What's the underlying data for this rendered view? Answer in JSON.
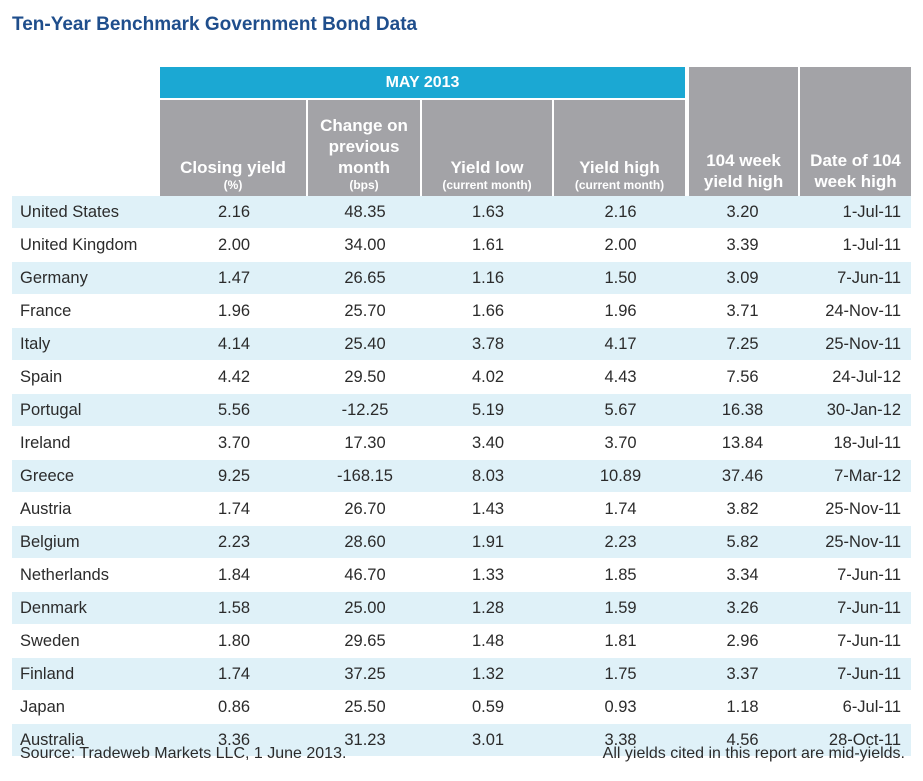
{
  "title": "Ten-Year Benchmark Government Bond Data",
  "header": {
    "month": "MAY 2013",
    "closing_yield": "Closing yield",
    "closing_yield_unit": "(%)",
    "change_line1": "Change on",
    "change_line2": "previous",
    "change_line3": "month",
    "change_unit": "(bps)",
    "yield_low": "Yield low",
    "yield_low_sub": "(current month)",
    "yield_high": "Yield high",
    "yield_high_sub": "(current month)",
    "week_high_line1": "104 week",
    "week_high_line2": "yield high",
    "date_high_line1": "Date of 104",
    "date_high_line2": "week high"
  },
  "rows": [
    [
      "United States",
      "2.16",
      "48.35",
      "1.63",
      "2.16",
      "3.20",
      "1-Jul-11"
    ],
    [
      "United Kingdom",
      "2.00",
      "34.00",
      "1.61",
      "2.00",
      "3.39",
      "1-Jul-11"
    ],
    [
      "Germany",
      "1.47",
      "26.65",
      "1.16",
      "1.50",
      "3.09",
      "7-Jun-11"
    ],
    [
      "France",
      "1.96",
      "25.70",
      "1.66",
      "1.96",
      "3.71",
      "24-Nov-11"
    ],
    [
      "Italy",
      "4.14",
      "25.40",
      "3.78",
      "4.17",
      "7.25",
      "25-Nov-11"
    ],
    [
      "Spain",
      "4.42",
      "29.50",
      "4.02",
      "4.43",
      "7.56",
      "24-Jul-12"
    ],
    [
      "Portugal",
      "5.56",
      "-12.25",
      "5.19",
      "5.67",
      "16.38",
      "30-Jan-12"
    ],
    [
      "Ireland",
      "3.70",
      "17.30",
      "3.40",
      "3.70",
      "13.84",
      "18-Jul-11"
    ],
    [
      "Greece",
      "9.25",
      "-168.15",
      "8.03",
      "10.89",
      "37.46",
      "7-Mar-12"
    ],
    [
      "Austria",
      "1.74",
      "26.70",
      "1.43",
      "1.74",
      "3.82",
      "25-Nov-11"
    ],
    [
      "Belgium",
      "2.23",
      "28.60",
      "1.91",
      "2.23",
      "5.82",
      "25-Nov-11"
    ],
    [
      "Netherlands",
      "1.84",
      "46.70",
      "1.33",
      "1.85",
      "3.34",
      "7-Jun-11"
    ],
    [
      "Denmark",
      "1.58",
      "25.00",
      "1.28",
      "1.59",
      "3.26",
      "7-Jun-11"
    ],
    [
      "Sweden",
      "1.80",
      "29.65",
      "1.48",
      "1.81",
      "2.96",
      "7-Jun-11"
    ],
    [
      "Finland",
      "1.74",
      "37.25",
      "1.32",
      "1.75",
      "3.37",
      "7-Jun-11"
    ],
    [
      "Japan",
      "0.86",
      "25.50",
      "0.59",
      "0.93",
      "1.18",
      "6-Jul-11"
    ],
    [
      "Australia",
      "3.36",
      "31.23",
      "3.01",
      "3.38",
      "4.56",
      "28-Oct-11"
    ]
  ],
  "footer": {
    "source": "Source: Tradeweb Markets LLC, 1 June 2013.",
    "note": "All yields cited in this report are mid-yields."
  },
  "colors": {
    "title": "#1f4e8c",
    "month_header": "#1ba8d3",
    "column_header": "#a3a3a7",
    "row_stripe": "#dff1f8"
  }
}
